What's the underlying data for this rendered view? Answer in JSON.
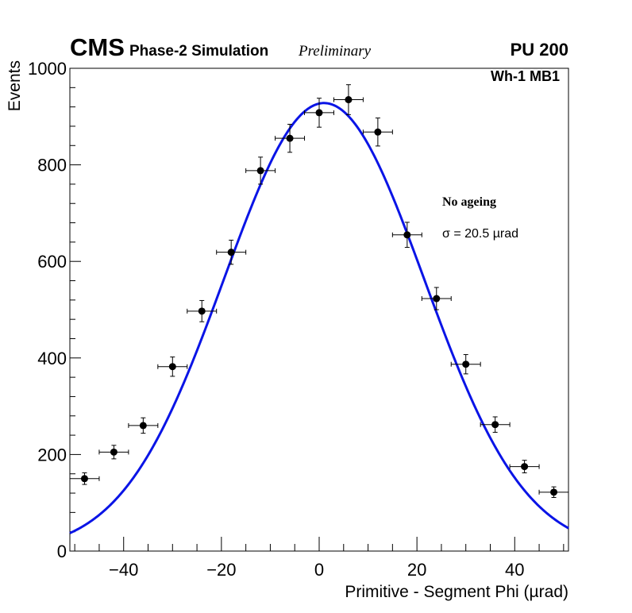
{
  "header": {
    "experiment": "CMS",
    "subtitle": "Phase-2 Simulation",
    "status": "Preliminary",
    "pileup": "PU 200",
    "region": "Wh-1 MB1"
  },
  "legend": {
    "condition": "No ageing",
    "sigma_text": "σ = 20.5  µrad"
  },
  "chart_data": {
    "type": "scatter",
    "title": "",
    "xlabel": "Primitive - Segment Phi (µrad)",
    "ylabel": "Events",
    "xlim": [
      -51,
      51
    ],
    "ylim": [
      0,
      1000
    ],
    "x_ticks": [
      -40,
      -20,
      0,
      20,
      40
    ],
    "x_tick_labels": [
      "−40",
      "−20",
      "0",
      "20",
      "40"
    ],
    "y_ticks": [
      0,
      200,
      400,
      600,
      800,
      1000
    ],
    "y_tick_labels": [
      "0",
      "200",
      "400",
      "600",
      "800",
      "1000"
    ],
    "bin_half_width": 3,
    "series": [
      {
        "name": "Simulation",
        "x": [
          -48,
          -42,
          -36,
          -30,
          -24,
          -18,
          -12,
          -6,
          0,
          6,
          12,
          18,
          24,
          30,
          36,
          42,
          48
        ],
        "y": [
          150,
          205,
          260,
          382,
          497,
          619,
          788,
          855,
          908,
          935,
          868,
          655,
          523,
          387,
          262,
          175,
          122
        ],
        "yerr": [
          12,
          14,
          16,
          20,
          22,
          25,
          28,
          29,
          30,
          31,
          29,
          26,
          23,
          20,
          16,
          13,
          11
        ]
      }
    ],
    "fit": {
      "name": "Gaussian fit",
      "color": "#0a14e6",
      "amplitude": 928,
      "mean": 1.0,
      "sigma": 20.5
    }
  }
}
